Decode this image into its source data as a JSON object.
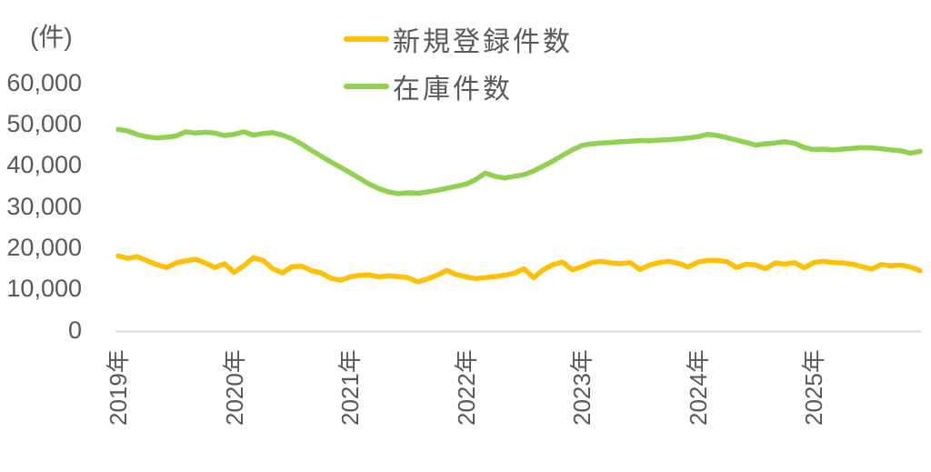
{
  "chart_data": {
    "type": "line",
    "title": "",
    "unit_label": "(件)",
    "ylabel": "(件)",
    "xlabel": "",
    "grid": false,
    "ylim": [
      0,
      60000
    ],
    "y_ticks": [
      60000,
      50000,
      40000,
      30000,
      20000,
      10000,
      0
    ],
    "y_tick_labels": [
      "60,000",
      "50,000",
      "40,000",
      "30,000",
      "20,000",
      "10,000",
      "0"
    ],
    "x_tick_labels": [
      "2019年",
      "2020年",
      "2021年",
      "2022年",
      "2023年",
      "2024年",
      "2025年"
    ],
    "x_start": "2019-01",
    "x_interval": "month",
    "n_points": 84,
    "legend": {
      "position": "top-center",
      "entries": [
        "新規登録件数",
        "在庫件数"
      ]
    },
    "colors": {
      "registrations": "#FFC000",
      "inventory": "#92D050",
      "text": "#595959",
      "axis_line": "#D9D9D9",
      "background": "#FFFFFF"
    },
    "series": [
      {
        "name": "新規登録件数",
        "color": "#FFC000",
        "values": [
          18000,
          17400,
          17800,
          16800,
          15900,
          15200,
          16300,
          16800,
          17200,
          16300,
          15200,
          16100,
          14000,
          15600,
          17600,
          16900,
          14900,
          13900,
          15400,
          15500,
          14400,
          13900,
          12600,
          12100,
          12900,
          13300,
          13400,
          12900,
          13200,
          13000,
          12700,
          11700,
          12400,
          13300,
          14500,
          13500,
          12900,
          12500,
          12700,
          13000,
          13300,
          13800,
          14900,
          12700,
          14700,
          15900,
          16500,
          14600,
          15400,
          16400,
          16700,
          16300,
          16100,
          16400,
          14700,
          15800,
          16400,
          16700,
          16200,
          15300,
          16500,
          16900,
          16900,
          16600,
          15200,
          16000,
          15800,
          14900,
          16300,
          16000,
          16400,
          15100,
          16400,
          16700,
          16400,
          16300,
          16000,
          15400,
          14800,
          15900,
          15600,
          15800,
          15300,
          14400
        ]
      },
      {
        "name": "在庫件数",
        "color": "#92D050",
        "values": [
          48700,
          48300,
          47400,
          46900,
          46600,
          46800,
          47100,
          48100,
          47800,
          48000,
          47800,
          47200,
          47500,
          48100,
          47300,
          47700,
          47900,
          47300,
          46400,
          45100,
          43600,
          42200,
          40800,
          39500,
          38200,
          36800,
          35400,
          34300,
          33500,
          33100,
          33300,
          33200,
          33500,
          33900,
          34400,
          34900,
          35400,
          36500,
          38100,
          37300,
          36900,
          37300,
          37700,
          38600,
          39800,
          41000,
          42400,
          43700,
          44800,
          45200,
          45400,
          45500,
          45700,
          45800,
          46000,
          45900,
          46100,
          46200,
          46400,
          46600,
          46900,
          47500,
          47200,
          46700,
          46100,
          45500,
          44900,
          45200,
          45400,
          45700,
          45300,
          44300,
          43800,
          43900,
          43700,
          43900,
          44100,
          44300,
          44200,
          44000,
          43700,
          43500,
          42900,
          43400
        ]
      }
    ]
  }
}
